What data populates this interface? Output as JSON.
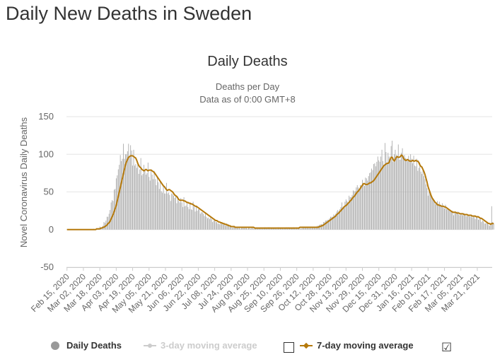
{
  "page": {
    "title": "Daily New Deaths in Sweden"
  },
  "legend": {
    "daily": "Daily Deaths",
    "ma3": "3-day moving average",
    "ma7": "7-day moving average",
    "ma3_checkbox": "",
    "ma7_checkbox": "☑"
  },
  "colors": {
    "bar": "#aaaaaa",
    "line7": "#b5790b",
    "line3": "#cccccc",
    "grid": "#e6e6e6",
    "axis": "#333333"
  },
  "chart_data": {
    "type": "bar",
    "title": "Daily Deaths",
    "subtitle": [
      "Deaths per Day",
      "Data as of 0:00 GMT+8"
    ],
    "ylabel": "Novel Coronavirus Daily Deaths",
    "ylim": [
      -50,
      150
    ],
    "yticks": [
      -50,
      0,
      50,
      100,
      150
    ],
    "x_start": "2020-02-15",
    "x_end": "2021-04-04",
    "x_tick_labels": [
      "Feb 15, 2020",
      "Mar 02, 2020",
      "Mar 18, 2020",
      "Apr 03, 2020",
      "Apr 19, 2020",
      "May 05, 2020",
      "May 21, 2020",
      "Jun 06, 2020",
      "Jun 22, 2020",
      "Jul 08, 2020",
      "Jul 24, 2020",
      "Aug 09, 2020",
      "Aug 25, 2020",
      "Sep 10, 2020",
      "Sep 26, 2020",
      "Oct 12, 2020",
      "Oct 28, 2020",
      "Nov 13, 2020",
      "Nov 29, 2020",
      "Dec 15, 2020",
      "Dec 31, 2020",
      "Jan 16, 2021",
      "Feb 01, 2021",
      "Feb 17, 2021",
      "Mar 05, 2021",
      "Mar 21, 2021"
    ],
    "daily_deaths": [
      0,
      0,
      0,
      0,
      0,
      0,
      0,
      0,
      0,
      0,
      0,
      0,
      0,
      0,
      0,
      0,
      0,
      0,
      0,
      0,
      0,
      0,
      0,
      0,
      0,
      0,
      1,
      0,
      1,
      2,
      1,
      2,
      4,
      3,
      3,
      5,
      10,
      9,
      12,
      17,
      17,
      21,
      26,
      36,
      39,
      38,
      53,
      54,
      68,
      72,
      80,
      86,
      99,
      91,
      94,
      114,
      94,
      100,
      100,
      104,
      114,
      96,
      112,
      105,
      85,
      106,
      85,
      87,
      82,
      89,
      74,
      80,
      95,
      72,
      74,
      86,
      78,
      73,
      75,
      89,
      70,
      65,
      80,
      73,
      67,
      78,
      67,
      59,
      70,
      63,
      54,
      64,
      51,
      49,
      58,
      48,
      48,
      62,
      48,
      49,
      46,
      38,
      48,
      47,
      45,
      42,
      44,
      35,
      44,
      38,
      36,
      42,
      36,
      30,
      43,
      31,
      32,
      36,
      30,
      27,
      36,
      27,
      26,
      37,
      30,
      24,
      31,
      25,
      27,
      29,
      21,
      23,
      23,
      21,
      18,
      23,
      17,
      15,
      16,
      14,
      16,
      14,
      10,
      12,
      14,
      10,
      10,
      8,
      8,
      7,
      10,
      8,
      7,
      7,
      6,
      5,
      8,
      5,
      4,
      4,
      4,
      2,
      4,
      3,
      2,
      3,
      2,
      2,
      3,
      1,
      2,
      3,
      2,
      2,
      4,
      2,
      1,
      3,
      3,
      1,
      3,
      3,
      1,
      2,
      2,
      3,
      1,
      2,
      2,
      1,
      2,
      1,
      2,
      3,
      2,
      1,
      3,
      3,
      1,
      2,
      2,
      2,
      2,
      2,
      1,
      1,
      3,
      2,
      2,
      2,
      2,
      1,
      2,
      2,
      3,
      1,
      3,
      2,
      2,
      2,
      2,
      3,
      2,
      1,
      3,
      2,
      3,
      3,
      1,
      2,
      4,
      3,
      3,
      3,
      3,
      4,
      2,
      4,
      2,
      3,
      4,
      4,
      4,
      4,
      5,
      5,
      6,
      7,
      7,
      7,
      10,
      10,
      12,
      12,
      13,
      13,
      15,
      17,
      17,
      17,
      20,
      19,
      21,
      24,
      26,
      24,
      27,
      30,
      36,
      30,
      31,
      37,
      40,
      38,
      36,
      45,
      43,
      43,
      46,
      52,
      51,
      51,
      56,
      59,
      56,
      53,
      59,
      59,
      66,
      61,
      58,
      69,
      68,
      65,
      71,
      75,
      76,
      81,
      79,
      87,
      88,
      84,
      90,
      97,
      92,
      90,
      97,
      106,
      91,
      86,
      115,
      103,
      89,
      102,
      97,
      94,
      111,
      118,
      90,
      100,
      106,
      99,
      98,
      113,
      93,
      93,
      102,
      108,
      98,
      99,
      95,
      94,
      91,
      98,
      93,
      100,
      94,
      88,
      98,
      85,
      84,
      94,
      78,
      82,
      89,
      77,
      74,
      81,
      71,
      67,
      60,
      55,
      45,
      51,
      48,
      46,
      43,
      41,
      39,
      34,
      36,
      38,
      33,
      37,
      33,
      30,
      35,
      29,
      28,
      33,
      27,
      29,
      26,
      25,
      25,
      25,
      25,
      19,
      24,
      23,
      22,
      24,
      20,
      19,
      22,
      20,
      19,
      22,
      20,
      18,
      18,
      20,
      18,
      17,
      20,
      16,
      17,
      18,
      14,
      16,
      18,
      13,
      14,
      16,
      10,
      12,
      11,
      8,
      8,
      9,
      10,
      6,
      5,
      7,
      31,
      10,
      8
    ],
    "moving_avg_7": [
      0,
      0,
      0,
      0,
      0,
      0,
      0,
      0,
      0,
      0,
      0,
      0,
      0,
      0,
      0,
      0,
      0,
      0,
      0,
      0,
      0,
      0,
      0,
      0,
      0,
      0,
      0,
      0,
      0,
      1,
      1,
      1,
      1,
      2,
      2,
      3,
      3,
      4,
      5,
      6,
      8,
      9,
      11,
      14,
      17,
      20,
      24,
      28,
      32,
      38,
      44,
      50,
      56,
      62,
      68,
      74,
      80,
      86,
      90,
      93,
      96,
      97,
      98,
      98,
      98,
      97,
      96,
      95,
      92,
      88,
      85,
      83,
      82,
      80,
      79,
      78,
      79,
      80,
      79,
      78,
      79,
      79,
      79,
      78,
      77,
      76,
      74,
      72,
      70,
      68,
      66,
      64,
      62,
      60,
      58,
      57,
      55,
      53,
      52,
      53,
      53,
      52,
      51,
      50,
      48,
      46,
      45,
      44,
      42,
      40,
      39,
      39,
      39,
      39,
      38,
      38,
      37,
      36,
      36,
      35,
      35,
      34,
      34,
      33,
      32,
      31,
      31,
      30,
      29,
      28,
      27,
      26,
      25,
      24,
      23,
      22,
      21,
      20,
      19,
      18,
      17,
      16,
      15,
      14,
      13,
      12,
      12,
      11,
      10,
      10,
      9,
      9,
      8,
      8,
      7,
      7,
      6,
      6,
      5,
      5,
      4,
      4,
      4,
      4,
      3,
      3,
      3,
      3,
      3,
      3,
      3,
      3,
      3,
      3,
      3,
      3,
      3,
      3,
      3,
      3,
      3,
      3,
      3,
      2,
      2,
      2,
      2,
      2,
      2,
      2,
      2,
      2,
      2,
      2,
      2,
      2,
      2,
      2,
      2,
      2,
      2,
      2,
      2,
      2,
      2,
      2,
      2,
      2,
      2,
      2,
      2,
      2,
      2,
      2,
      2,
      2,
      2,
      2,
      2,
      2,
      2,
      2,
      2,
      2,
      2,
      2,
      2,
      3,
      3,
      3,
      3,
      3,
      3,
      3,
      3,
      3,
      3,
      3,
      3,
      3,
      3,
      3,
      3,
      3,
      3,
      3,
      4,
      4,
      5,
      5,
      6,
      7,
      8,
      9,
      10,
      11,
      12,
      13,
      14,
      15,
      16,
      17,
      18,
      20,
      21,
      22,
      24,
      25,
      27,
      28,
      30,
      31,
      32,
      33,
      35,
      36,
      38,
      39,
      41,
      43,
      44,
      46,
      48,
      50,
      51,
      53,
      55,
      57,
      59,
      61,
      61,
      60,
      60,
      60,
      61,
      62,
      62,
      63,
      64,
      65,
      67,
      69,
      71,
      73,
      75,
      77,
      79,
      81,
      83,
      85,
      86,
      87,
      88,
      88,
      89,
      93,
      96,
      96,
      93,
      91,
      93,
      96,
      97,
      96,
      96,
      97,
      99,
      98,
      95,
      93,
      92,
      92,
      93,
      92,
      91,
      91,
      91,
      92,
      91,
      91,
      92,
      91,
      91,
      89,
      86,
      84,
      83,
      80,
      77,
      73,
      68,
      63,
      57,
      53,
      49,
      45,
      42,
      40,
      38,
      36,
      35,
      33,
      33,
      32,
      32,
      31,
      31,
      31,
      30,
      30,
      29,
      28,
      27,
      26,
      25,
      24,
      23,
      23,
      23,
      23,
      22,
      22,
      22,
      21,
      21,
      21,
      21,
      20,
      20,
      20,
      20,
      19,
      19,
      19,
      19,
      18,
      18,
      18,
      18,
      17,
      17,
      17,
      16,
      15,
      15,
      14,
      13,
      12,
      11,
      10,
      9,
      8,
      8,
      7,
      8,
      8,
      8
    ]
  }
}
